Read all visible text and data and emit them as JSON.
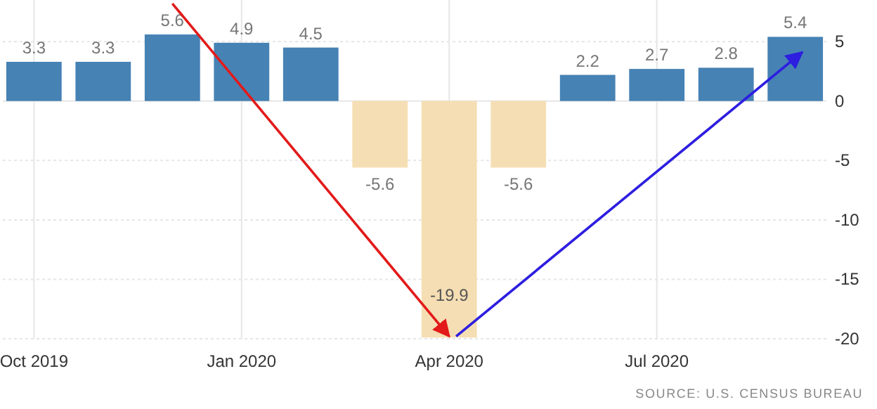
{
  "chart_data": {
    "type": "bar",
    "categories": [
      "Oct 2019",
      null,
      null,
      "Jan 2020",
      null,
      null,
      "Apr 2020",
      null,
      null,
      "Jul 2020",
      null,
      null
    ],
    "values": [
      3.3,
      3.3,
      5.6,
      4.9,
      4.5,
      -5.6,
      -19.9,
      -5.6,
      2.2,
      2.7,
      2.8,
      5.4
    ],
    "colors": [
      "#4682b4",
      "#4682b4",
      "#4682b4",
      "#4682b4",
      "#4682b4",
      "#f5deb3",
      "#f5deb3",
      "#f5deb3",
      "#4682b4",
      "#4682b4",
      "#4682b4",
      "#4682b4"
    ],
    "ylim": [
      -20,
      8.5
    ],
    "yticks": [
      -20,
      -15,
      -10,
      -5,
      0,
      5
    ],
    "grid": true,
    "data_labels": true,
    "annotations": [
      "SOURCE: U.S. CENSUS BUREAU"
    ]
  }
}
